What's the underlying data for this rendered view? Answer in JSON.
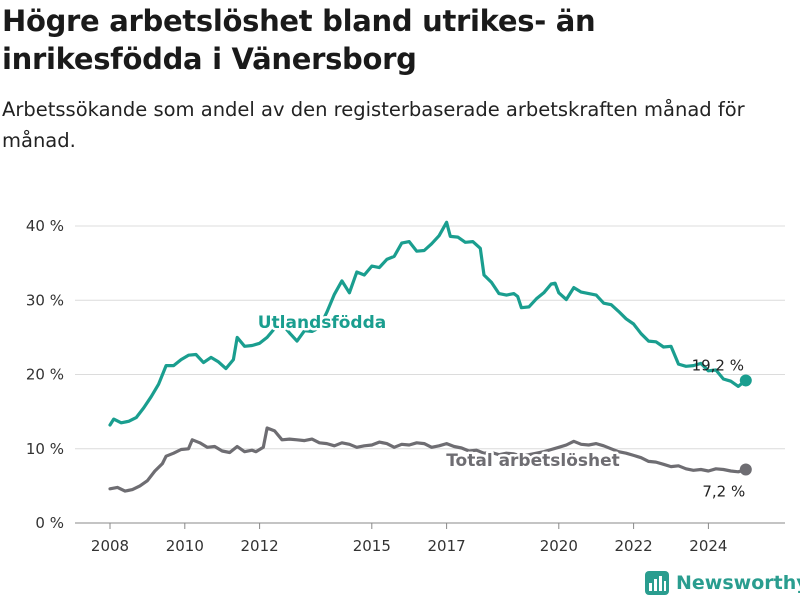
{
  "title": "Högre arbetslöshet bland utrikes- än inrikesfödda i Vänersborg",
  "subtitle": "Arbetssökande som andel av den registerbaserade arbetskraften månad för månad.",
  "brand": {
    "name": "Newsworthy",
    "icon": "bar-chart-icon",
    "color": "#2a9d8f"
  },
  "chart_data": {
    "type": "line",
    "xlabel": "",
    "ylabel": "",
    "ylim": [
      0,
      40
    ],
    "y_ticks": [
      0,
      10,
      20,
      30,
      40
    ],
    "y_tick_labels": [
      "0 %",
      "10 %",
      "20 %",
      "30 %",
      "40 %"
    ],
    "x_ticks": [
      2008,
      2010,
      2012,
      2015,
      2017,
      2020,
      2022,
      2024
    ],
    "grid": true,
    "series": [
      {
        "name": "Utlandsfödda",
        "color": "#1a9e8f",
        "end_label": "19,2 %",
        "points": [
          [
            2008.0,
            13.2
          ],
          [
            2008.1,
            14.0
          ],
          [
            2008.3,
            13.5
          ],
          [
            2008.5,
            13.7
          ],
          [
            2008.7,
            14.2
          ],
          [
            2008.9,
            15.5
          ],
          [
            2009.1,
            17.0
          ],
          [
            2009.3,
            18.7
          ],
          [
            2009.5,
            21.2
          ],
          [
            2009.7,
            21.2
          ],
          [
            2009.9,
            22.0
          ],
          [
            2010.1,
            22.6
          ],
          [
            2010.3,
            22.7
          ],
          [
            2010.5,
            21.6
          ],
          [
            2010.7,
            22.3
          ],
          [
            2010.9,
            21.7
          ],
          [
            2011.1,
            20.8
          ],
          [
            2011.3,
            22.0
          ],
          [
            2011.4,
            25.0
          ],
          [
            2011.6,
            23.8
          ],
          [
            2011.8,
            23.9
          ],
          [
            2012.0,
            24.2
          ],
          [
            2012.2,
            25.0
          ],
          [
            2012.4,
            26.2
          ],
          [
            2012.6,
            26.8
          ],
          [
            2012.8,
            25.6
          ],
          [
            2013.0,
            24.5
          ],
          [
            2013.2,
            25.9
          ],
          [
            2013.4,
            25.8
          ],
          [
            2013.6,
            26.3
          ],
          [
            2013.8,
            28.4
          ],
          [
            2014.0,
            30.8
          ],
          [
            2014.2,
            32.6
          ],
          [
            2014.4,
            31.0
          ],
          [
            2014.6,
            33.8
          ],
          [
            2014.8,
            33.4
          ],
          [
            2015.0,
            34.6
          ],
          [
            2015.2,
            34.4
          ],
          [
            2015.4,
            35.5
          ],
          [
            2015.6,
            35.9
          ],
          [
            2015.8,
            37.7
          ],
          [
            2016.0,
            37.9
          ],
          [
            2016.2,
            36.6
          ],
          [
            2016.4,
            36.7
          ],
          [
            2016.6,
            37.6
          ],
          [
            2016.8,
            38.7
          ],
          [
            2017.0,
            40.5
          ],
          [
            2017.1,
            38.6
          ],
          [
            2017.3,
            38.5
          ],
          [
            2017.5,
            37.8
          ],
          [
            2017.7,
            37.9
          ],
          [
            2017.9,
            37.0
          ],
          [
            2018.0,
            33.4
          ],
          [
            2018.2,
            32.4
          ],
          [
            2018.4,
            30.9
          ],
          [
            2018.6,
            30.7
          ],
          [
            2018.8,
            30.9
          ],
          [
            2018.9,
            30.5
          ],
          [
            2019.0,
            29.0
          ],
          [
            2019.2,
            29.1
          ],
          [
            2019.4,
            30.2
          ],
          [
            2019.6,
            31.0
          ],
          [
            2019.8,
            32.2
          ],
          [
            2019.9,
            32.3
          ],
          [
            2020.0,
            31.0
          ],
          [
            2020.2,
            30.1
          ],
          [
            2020.4,
            31.7
          ],
          [
            2020.6,
            31.1
          ],
          [
            2020.8,
            30.9
          ],
          [
            2021.0,
            30.7
          ],
          [
            2021.2,
            29.6
          ],
          [
            2021.4,
            29.4
          ],
          [
            2021.6,
            28.5
          ],
          [
            2021.8,
            27.5
          ],
          [
            2022.0,
            26.8
          ],
          [
            2022.2,
            25.5
          ],
          [
            2022.4,
            24.5
          ],
          [
            2022.6,
            24.4
          ],
          [
            2022.8,
            23.7
          ],
          [
            2023.0,
            23.8
          ],
          [
            2023.2,
            21.4
          ],
          [
            2023.4,
            21.1
          ],
          [
            2023.6,
            21.2
          ],
          [
            2023.8,
            21.5
          ],
          [
            2024.0,
            20.5
          ],
          [
            2024.2,
            20.6
          ],
          [
            2024.4,
            19.4
          ],
          [
            2024.6,
            19.1
          ],
          [
            2024.8,
            18.4
          ],
          [
            2025.0,
            19.2
          ]
        ]
      },
      {
        "name": "Total arbetslöshet",
        "color": "#6e6d72",
        "end_label": "7,2 %",
        "points": [
          [
            2008.0,
            4.6
          ],
          [
            2008.2,
            4.8
          ],
          [
            2008.4,
            4.3
          ],
          [
            2008.6,
            4.5
          ],
          [
            2008.8,
            5.0
          ],
          [
            2009.0,
            5.7
          ],
          [
            2009.2,
            7.0
          ],
          [
            2009.4,
            8.0
          ],
          [
            2009.5,
            9.0
          ],
          [
            2009.7,
            9.4
          ],
          [
            2009.9,
            9.9
          ],
          [
            2010.1,
            10.0
          ],
          [
            2010.2,
            11.2
          ],
          [
            2010.4,
            10.8
          ],
          [
            2010.6,
            10.2
          ],
          [
            2010.8,
            10.3
          ],
          [
            2011.0,
            9.7
          ],
          [
            2011.2,
            9.5
          ],
          [
            2011.4,
            10.3
          ],
          [
            2011.6,
            9.6
          ],
          [
            2011.8,
            9.8
          ],
          [
            2011.9,
            9.6
          ],
          [
            2012.1,
            10.2
          ],
          [
            2012.2,
            12.8
          ],
          [
            2012.4,
            12.4
          ],
          [
            2012.6,
            11.2
          ],
          [
            2012.8,
            11.3
          ],
          [
            2013.0,
            11.2
          ],
          [
            2013.2,
            11.1
          ],
          [
            2013.4,
            11.3
          ],
          [
            2013.6,
            10.8
          ],
          [
            2013.8,
            10.7
          ],
          [
            2014.0,
            10.4
          ],
          [
            2014.2,
            10.8
          ],
          [
            2014.4,
            10.6
          ],
          [
            2014.6,
            10.2
          ],
          [
            2014.8,
            10.4
          ],
          [
            2015.0,
            10.5
          ],
          [
            2015.2,
            10.9
          ],
          [
            2015.4,
            10.7
          ],
          [
            2015.6,
            10.2
          ],
          [
            2015.8,
            10.6
          ],
          [
            2016.0,
            10.5
          ],
          [
            2016.2,
            10.8
          ],
          [
            2016.4,
            10.7
          ],
          [
            2016.6,
            10.2
          ],
          [
            2016.8,
            10.4
          ],
          [
            2017.0,
            10.7
          ],
          [
            2017.2,
            10.3
          ],
          [
            2017.4,
            10.1
          ],
          [
            2017.6,
            9.7
          ],
          [
            2017.8,
            9.8
          ],
          [
            2018.0,
            9.4
          ],
          [
            2018.2,
            9.5
          ],
          [
            2018.4,
            9.2
          ],
          [
            2018.6,
            9.4
          ],
          [
            2018.8,
            9.3
          ],
          [
            2019.0,
            9.0
          ],
          [
            2019.2,
            9.2
          ],
          [
            2019.4,
            9.4
          ],
          [
            2019.6,
            9.6
          ],
          [
            2019.8,
            9.9
          ],
          [
            2020.0,
            10.2
          ],
          [
            2020.2,
            10.5
          ],
          [
            2020.4,
            11.0
          ],
          [
            2020.6,
            10.6
          ],
          [
            2020.8,
            10.5
          ],
          [
            2021.0,
            10.7
          ],
          [
            2021.2,
            10.4
          ],
          [
            2021.4,
            10.0
          ],
          [
            2021.6,
            9.6
          ],
          [
            2021.8,
            9.4
          ],
          [
            2022.0,
            9.1
          ],
          [
            2022.2,
            8.8
          ],
          [
            2022.4,
            8.3
          ],
          [
            2022.6,
            8.2
          ],
          [
            2022.8,
            7.9
          ],
          [
            2023.0,
            7.6
          ],
          [
            2023.2,
            7.7
          ],
          [
            2023.4,
            7.3
          ],
          [
            2023.6,
            7.1
          ],
          [
            2023.8,
            7.2
          ],
          [
            2024.0,
            7.0
          ],
          [
            2024.2,
            7.3
          ],
          [
            2024.4,
            7.2
          ],
          [
            2024.6,
            7.0
          ],
          [
            2024.8,
            6.9
          ],
          [
            2025.0,
            7.2
          ]
        ]
      }
    ]
  }
}
